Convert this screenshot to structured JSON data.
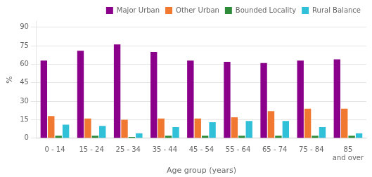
{
  "chart_data": {
    "type": "bar",
    "categories": [
      "0 - 14",
      "15 - 24",
      "25 - 34",
      "35 - 44",
      "45 - 54",
      "55 - 64",
      "65 - 74",
      "75 - 84",
      "85\nand over"
    ],
    "series": [
      {
        "name": "Major Urban",
        "color": "#8b008b",
        "values": [
          63,
          71,
          76,
          70,
          63,
          62,
          61,
          63,
          64
        ]
      },
      {
        "name": "Other Urban",
        "color": "#f07830",
        "values": [
          18,
          16,
          15,
          16,
          16,
          17,
          22,
          24,
          24
        ]
      },
      {
        "name": "Bounded Locality",
        "color": "#2e8b3a",
        "values": [
          2,
          2,
          1,
          2,
          2,
          2,
          2,
          2,
          2
        ]
      },
      {
        "name": "Rural Balance",
        "color": "#30c0d8",
        "values": [
          11,
          10,
          4,
          9,
          13,
          14,
          14,
          9,
          4
        ]
      }
    ],
    "xlabel": "Age group (years)",
    "ylabel": "%",
    "ylim": [
      0,
      95
    ],
    "yticks": [
      0,
      15,
      30,
      45,
      60,
      75,
      90
    ],
    "grid": true,
    "legend": "upper right"
  }
}
